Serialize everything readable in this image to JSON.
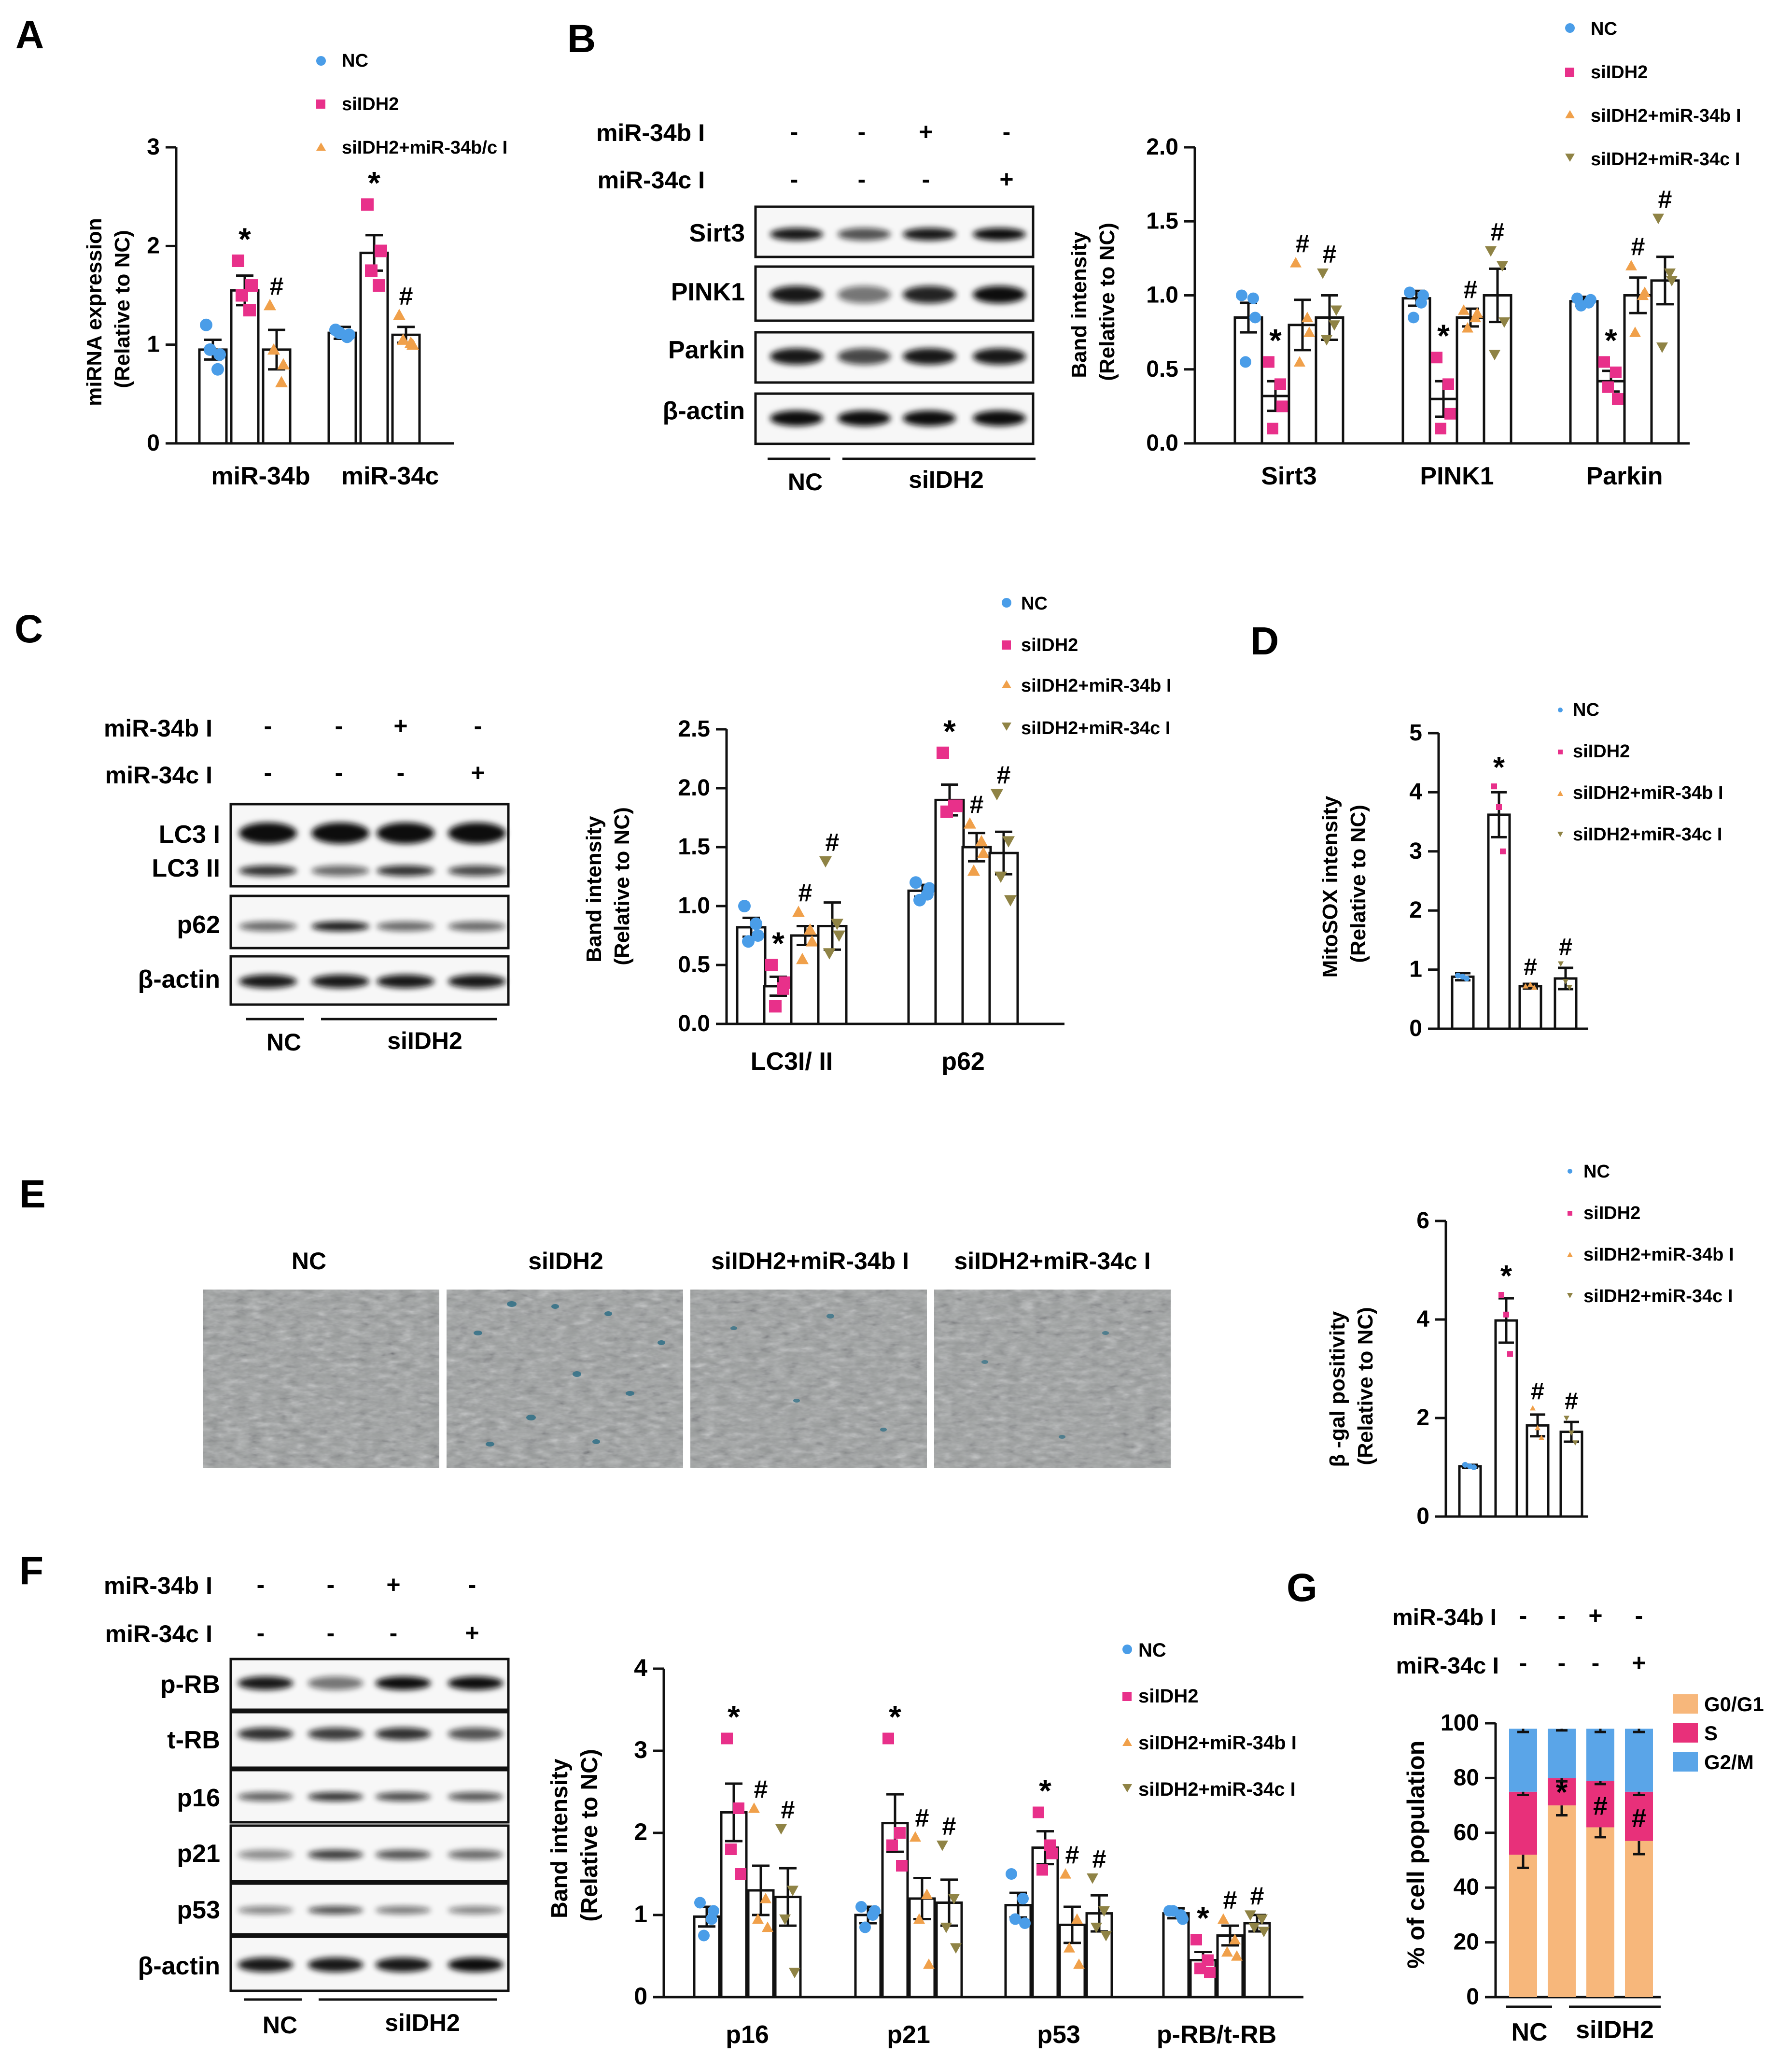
{
  "colors": {
    "nc": "#4a9de8",
    "sil": "#e8308a",
    "b_inh": "#f0a04a",
    "c_inh": "#8f8345",
    "g0g1": "#f7b77b",
    "s_phase": "#e8307a",
    "g2m": "#5aa5e8"
  },
  "icons": {
    "nc": "circle-icon",
    "sil": "square-icon",
    "b_inh": "triangle-up-icon",
    "c_inh": "triangle-down-icon"
  },
  "panels": {
    "A": {
      "letter": "A",
      "legend": [
        "NC",
        "siIDH2",
        "siIDH2+miR-34b/c I"
      ],
      "ylabel1": "miRNA expression",
      "ylabel2": "(Relative to NC)"
    },
    "B": {
      "letter": "B",
      "blot_treat_labels": [
        "miR-34b I",
        "miR-34c I"
      ],
      "blot_signs": [
        [
          "-",
          "-",
          "+",
          "-"
        ],
        [
          "-",
          "-",
          "-",
          "+"
        ]
      ],
      "blot_rows": [
        "Sirt3",
        "PINK1",
        "Parkin",
        "β-actin"
      ],
      "blot_groups": [
        "NC",
        "siIDH2"
      ],
      "legend": [
        "NC",
        "siIDH2",
        "siIDH2+miR-34b I",
        "siIDH2+miR-34c I"
      ],
      "ylabel1": "Band intensity",
      "ylabel2": "(Relative to NC)"
    },
    "C": {
      "letter": "C",
      "blot_treat_labels": [
        "miR-34b I",
        "miR-34c I"
      ],
      "blot_signs": [
        [
          "-",
          "-",
          "+",
          "-"
        ],
        [
          "-",
          "-",
          "-",
          "+"
        ]
      ],
      "blot_rows": [
        "LC3 I",
        "LC3 II",
        "p62",
        "β-actin"
      ],
      "blot_groups": [
        "NC",
        "siIDH2"
      ],
      "legend": [
        "NC",
        "siIDH2",
        "siIDH2+miR-34b I",
        "siIDH2+miR-34c I"
      ],
      "ylabel1": "Band intensity",
      "ylabel2": "(Relative to NC)"
    },
    "D": {
      "letter": "D",
      "legend": [
        "NC",
        "siIDH2",
        "siIDH2+miR-34b I",
        "siIDH2+miR-34c I"
      ],
      "ylabel1": "MitoSOX intensity",
      "ylabel2": "(Relative to NC)"
    },
    "E": {
      "letter": "E",
      "image_labels": [
        "NC",
        "siIDH2",
        "siIDH2+miR-34b I",
        "siIDH2+miR-34c I"
      ],
      "legend": [
        "NC",
        "siIDH2",
        "siIDH2+miR-34b I",
        "siIDH2+miR-34c I"
      ],
      "ylabel1": "β -gal positivity",
      "ylabel2": "(Relative to NC)"
    },
    "F": {
      "letter": "F",
      "blot_treat_labels": [
        "miR-34b I",
        "miR-34c I"
      ],
      "blot_signs": [
        [
          "-",
          "-",
          "+",
          "-"
        ],
        [
          "-",
          "-",
          "-",
          "+"
        ]
      ],
      "blot_rows": [
        "p-RB",
        "t-RB",
        "p16",
        "p21",
        "p53",
        "β-actin"
      ],
      "blot_groups": [
        "NC",
        "siIDH2"
      ],
      "legend": [
        "NC",
        "siIDH2",
        "siIDH2+miR-34b I",
        "siIDH2+miR-34c I"
      ],
      "ylabel1": "Band intensity",
      "ylabel2": "(Relative to NC)"
    },
    "G": {
      "letter": "G",
      "treat_labels": [
        "miR-34b I",
        "miR-34c I"
      ],
      "signs": [
        [
          "-",
          "-",
          "+",
          "-"
        ],
        [
          "-",
          "-",
          "-",
          "+"
        ]
      ],
      "groups": [
        "NC",
        "siIDH2"
      ],
      "legend": [
        "G0/G1",
        "S",
        "G2/M"
      ],
      "ylabel": "% of cell population"
    }
  },
  "chart_data": [
    {
      "id": "A",
      "type": "bar",
      "title": "",
      "categories": [
        "miR-34b",
        "miR-34c"
      ],
      "series": [
        {
          "name": "NC",
          "values": [
            0.95,
            1.12
          ],
          "errors": [
            0.1,
            0.06
          ],
          "points": [
            [
              1.2,
              0.75,
              0.95,
              0.9
            ],
            [
              1.15,
              1.08,
              1.12,
              1.1
            ]
          ],
          "sig": [
            "",
            ""
          ]
        },
        {
          "name": "siIDH2",
          "values": [
            1.55,
            1.93
          ],
          "errors": [
            0.15,
            0.18
          ],
          "points": [
            [
              1.85,
              1.35,
              1.5,
              1.6
            ],
            [
              2.42,
              1.6,
              1.75,
              1.95
            ]
          ],
          "sig": [
            "*",
            "*"
          ]
        },
        {
          "name": "siIDH2+miR-34b/c I",
          "values": [
            0.95,
            1.1
          ],
          "errors": [
            0.2,
            0.08
          ],
          "points": [
            [
              1.4,
              0.62,
              0.95,
              0.8
            ],
            [
              1.3,
              1.02,
              1.05,
              1.0
            ]
          ],
          "sig": [
            "#",
            "#"
          ]
        }
      ],
      "ylim": [
        0,
        3
      ],
      "yticks": [
        0,
        1,
        2,
        3
      ],
      "ylabel": "miRNA expression (Relative to NC)"
    },
    {
      "id": "B",
      "type": "bar",
      "title": "",
      "categories": [
        "Sirt3",
        "PINK1",
        "Parkin"
      ],
      "series": [
        {
          "name": "NC",
          "values": [
            0.85,
            0.98,
            0.96
          ],
          "errors": [
            0.1,
            0.05,
            0.03
          ],
          "points": [
            [
              1.0,
              0.98,
              0.55,
              0.85
            ],
            [
              1.02,
              0.95,
              0.85,
              1.0
            ],
            [
              0.98,
              0.95,
              0.93,
              0.97
            ]
          ],
          "sig": [
            "",
            "",
            ""
          ]
        },
        {
          "name": "siIDH2",
          "values": [
            0.32,
            0.3,
            0.42
          ],
          "errors": [
            0.1,
            0.12,
            0.07
          ],
          "points": [
            [
              0.55,
              0.4,
              0.1,
              0.25
            ],
            [
              0.58,
              0.4,
              0.1,
              0.2
            ],
            [
              0.55,
              0.48,
              0.38,
              0.3
            ]
          ],
          "sig": [
            "*",
            "*",
            "*"
          ]
        },
        {
          "name": "siIDH2+miR-34b I",
          "values": [
            0.8,
            0.85,
            1.0
          ],
          "errors": [
            0.17,
            0.06,
            0.12
          ],
          "points": [
            [
              1.22,
              0.85,
              0.55,
              0.75
            ],
            [
              0.9,
              0.85,
              0.78,
              0.88
            ],
            [
              1.2,
              1.0,
              0.75,
              1.02
            ]
          ],
          "sig": [
            "#",
            "#",
            "#"
          ]
        },
        {
          "name": "siIDH2+miR-34c I",
          "values": [
            0.85,
            1.0,
            1.1
          ],
          "errors": [
            0.15,
            0.18,
            0.16
          ],
          "points": [
            [
              1.15,
              0.8,
              0.7,
              0.9
            ],
            [
              1.3,
              1.2,
              0.6,
              0.82
            ],
            [
              1.52,
              1.15,
              0.65,
              1.1
            ]
          ],
          "sig": [
            "#",
            "#",
            "#"
          ]
        }
      ],
      "ylim": [
        0,
        2.0
      ],
      "yticks": [
        0.0,
        0.5,
        1.0,
        1.5,
        2.0
      ],
      "ylabel": "Band intensity (Relative to NC)"
    },
    {
      "id": "C",
      "type": "bar",
      "title": "",
      "categories": [
        "LC3I/ II",
        "p62"
      ],
      "series": [
        {
          "name": "NC",
          "values": [
            0.82,
            1.13
          ],
          "errors": [
            0.08,
            0.05
          ],
          "points": [
            [
              1.0,
              0.85,
              0.7,
              0.75
            ],
            [
              1.2,
              1.1,
              1.05,
              1.15
            ]
          ],
          "sig": [
            "",
            ""
          ]
        },
        {
          "name": "siIDH2",
          "values": [
            0.32,
            1.9
          ],
          "errors": [
            0.08,
            0.13
          ],
          "points": [
            [
              0.5,
              0.3,
              0.15,
              0.35
            ],
            [
              2.3,
              1.85,
              1.8,
              1.85
            ]
          ],
          "sig": [
            "*",
            "*"
          ]
        },
        {
          "name": "siIDH2+miR-34b I",
          "values": [
            0.75,
            1.5
          ],
          "errors": [
            0.08,
            0.12
          ],
          "points": [
            [
              0.95,
              0.8,
              0.55,
              0.7
            ],
            [
              1.7,
              1.55,
              1.3,
              1.45
            ]
          ],
          "sig": [
            "#",
            "#"
          ]
        },
        {
          "name": "siIDH2+miR-34c I",
          "values": [
            0.83,
            1.45
          ],
          "errors": [
            0.2,
            0.18
          ],
          "points": [
            [
              1.38,
              0.85,
              0.6,
              0.75
            ],
            [
              1.95,
              1.55,
              1.25,
              1.05
            ]
          ],
          "sig": [
            "#",
            "#"
          ]
        }
      ],
      "ylim": [
        0,
        2.5
      ],
      "yticks": [
        0.0,
        0.5,
        1.0,
        1.5,
        2.0,
        2.5
      ],
      "ylabel": "Band intensity (Relative to NC)"
    },
    {
      "id": "D",
      "type": "bar",
      "title": "",
      "categories": [
        "NC",
        "siIDH2",
        "siIDH2+miR-34b I",
        "siIDH2+miR-34c I"
      ],
      "values": [
        0.88,
        3.62,
        0.72,
        0.85
      ],
      "errors": [
        0.06,
        0.38,
        0.04,
        0.18
      ],
      "points": [
        [
          0.9,
          0.85,
          0.88
        ],
        [
          4.1,
          3.0,
          3.75
        ],
        [
          0.72,
          0.7,
          0.75
        ],
        [
          1.1,
          0.7,
          0.8
        ]
      ],
      "sig": [
        "",
        "*",
        "#",
        "#"
      ],
      "ylim": [
        0,
        5
      ],
      "yticks": [
        0,
        1,
        2,
        3,
        4,
        5
      ],
      "ylabel": "MitoSOX intensity (Relative to NC)"
    },
    {
      "id": "E",
      "type": "bar",
      "title": "",
      "categories": [
        "NC",
        "siIDH2",
        "siIDH2+miR-34b I",
        "siIDH2+miR-34c I"
      ],
      "values": [
        1.02,
        3.98,
        1.85,
        1.72
      ],
      "errors": [
        0.03,
        0.45,
        0.22,
        0.2
      ],
      "points": [
        [
          1.05,
          1.0,
          1.02
        ],
        [
          4.5,
          3.3,
          4.1
        ],
        [
          2.2,
          1.6,
          1.8
        ],
        [
          2.0,
          1.5,
          1.7
        ]
      ],
      "sig": [
        "",
        "*",
        "#",
        "#"
      ],
      "ylim": [
        0,
        6
      ],
      "yticks": [
        0,
        2,
        4,
        6
      ],
      "ylabel": "β -gal positivity (Relative to NC)"
    },
    {
      "id": "F",
      "type": "bar",
      "title": "",
      "categories": [
        "p16",
        "p21",
        "p53",
        "p-RB/t-RB"
      ],
      "series": [
        {
          "name": "NC",
          "values": [
            0.98,
            1.0,
            1.12,
            1.02
          ],
          "errors": [
            0.12,
            0.1,
            0.15,
            0.06
          ],
          "points": [
            [
              1.15,
              0.95,
              0.75,
              1.05
            ],
            [
              1.1,
              1.0,
              0.85,
              1.05
            ],
            [
              1.5,
              1.2,
              0.95,
              0.9
            ],
            [
              1.05,
              1.0,
              1.05,
              0.95
            ]
          ],
          "sig": [
            "",
            "",
            "",
            ""
          ]
        },
        {
          "name": "siIDH2",
          "values": [
            2.25,
            2.12,
            1.82,
            0.45
          ],
          "errors": [
            0.35,
            0.35,
            0.2,
            0.1
          ],
          "points": [
            [
              3.15,
              2.3,
              1.8,
              1.5
            ],
            [
              3.15,
              2.0,
              1.85,
              1.6
            ],
            [
              2.25,
              1.85,
              1.55,
              1.75
            ],
            [
              0.7,
              0.45,
              0.35,
              0.3
            ]
          ],
          "sig": [
            "*",
            "*",
            "*",
            "*"
          ]
        },
        {
          "name": "siIDH2+miR-34b I",
          "values": [
            1.3,
            1.2,
            0.88,
            0.75
          ],
          "errors": [
            0.3,
            0.25,
            0.22,
            0.12
          ],
          "points": [
            [
              2.3,
              1.2,
              0.95,
              0.85
            ],
            [
              1.95,
              1.25,
              0.95,
              0.4
            ],
            [
              1.5,
              0.95,
              0.6,
              0.4
            ],
            [
              0.95,
              0.7,
              0.55,
              0.5
            ]
          ],
          "sig": [
            "#",
            "#",
            "#",
            "#"
          ]
        },
        {
          "name": "siIDH2+miR-34c I",
          "values": [
            1.22,
            1.15,
            1.02,
            0.9
          ],
          "errors": [
            0.35,
            0.28,
            0.22,
            0.1
          ],
          "points": [
            [
              2.05,
              1.3,
              0.95,
              0.3
            ],
            [
              1.85,
              1.2,
              0.85,
              0.6
            ],
            [
              1.45,
              1.05,
              0.85,
              0.75
            ],
            [
              1.0,
              0.95,
              0.85,
              0.8
            ]
          ],
          "sig": [
            "#",
            "#",
            "#",
            "#"
          ]
        }
      ],
      "ylim": [
        0,
        4
      ],
      "yticks": [
        0,
        1,
        2,
        3,
        4
      ],
      "ylabel": "Band intensity (Relative to NC)"
    },
    {
      "id": "G",
      "type": "bar",
      "stacked": true,
      "title": "",
      "categories": [
        "NC",
        "siIDH2",
        "siIDH2+miR-34b I",
        "siIDH2+miR-34c I"
      ],
      "series": [
        {
          "name": "G0/G1",
          "values": [
            52,
            70,
            62,
            57
          ],
          "errors": [
            4,
            3,
            3,
            4
          ]
        },
        {
          "name": "S",
          "values": [
            23,
            10,
            17,
            18
          ],
          "errors": [
            1,
            1,
            1,
            1
          ]
        },
        {
          "name": "G2/M",
          "values": [
            23,
            18,
            19,
            23
          ],
          "errors": [
            1,
            0.5,
            1,
            1
          ]
        }
      ],
      "sig": [
        "",
        "*",
        "#",
        "#"
      ],
      "ylim": [
        0,
        100
      ],
      "yticks": [
        0,
        20,
        40,
        60,
        80,
        100
      ],
      "ylabel": "% of cell population"
    }
  ]
}
